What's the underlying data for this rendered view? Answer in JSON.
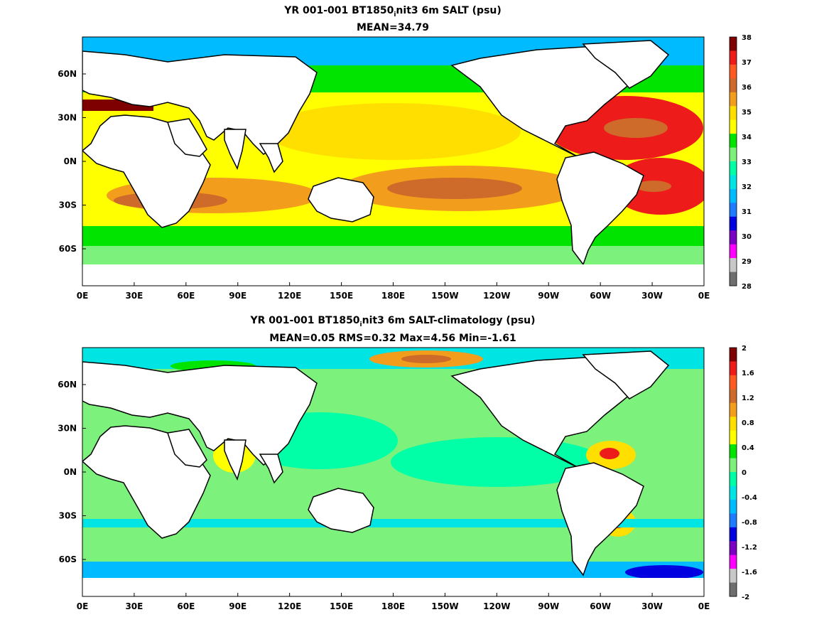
{
  "chart_data": [
    {
      "type": "heatmap",
      "panel": "top",
      "title": "YR 001-001 BT1850",
      "title_sub": "i",
      "title_rest": "nit3 6m SALT (psu)",
      "subtitle": "MEAN=34.79",
      "x_ticks": [
        "0E",
        "30E",
        "60E",
        "90E",
        "120E",
        "150E",
        "180E",
        "150W",
        "120W",
        "90W",
        "60W",
        "30W",
        "0E"
      ],
      "y_ticks": [
        "60N",
        "30N",
        "0N",
        "30S",
        "60S"
      ],
      "colorbar": {
        "labels": [
          "38",
          "37",
          "36",
          "35",
          "34",
          "33",
          "32",
          "31",
          "30",
          "29",
          "28"
        ],
        "colors": [
          "#7f0000",
          "#ee1b1b",
          "#ff5a22",
          "#ce6a2a",
          "#f29d1c",
          "#ffdf00",
          "#ffff00",
          "#00e400",
          "#7cf27c",
          "#00ffa6",
          "#00e4e4",
          "#00bbff",
          "#1f7bff",
          "#0000e0",
          "#7a00c4",
          "#ff00ff",
          "#c8c8c8",
          "#6e6e6e"
        ]
      }
    },
    {
      "type": "heatmap",
      "panel": "bottom",
      "title": "YR 001-001 BT1850",
      "title_sub": "i",
      "title_rest": "nit3 6m SALT-climatology (psu)",
      "subtitle": "MEAN=0.05   RMS=0.32   Max=4.56   Min=-1.61",
      "x_ticks": [
        "0E",
        "30E",
        "60E",
        "90E",
        "120E",
        "150E",
        "180E",
        "150W",
        "120W",
        "90W",
        "60W",
        "30W",
        "0E"
      ],
      "y_ticks": [
        "60N",
        "30N",
        "0N",
        "30S",
        "60S"
      ],
      "colorbar": {
        "labels": [
          "2",
          "1.6",
          "1.2",
          "0.8",
          "0.4",
          "0",
          "-0.4",
          "-0.8",
          "-1.2",
          "-1.6",
          "-2"
        ],
        "colors": [
          "#7f0000",
          "#ee1b1b",
          "#ff5a22",
          "#ce6a2a",
          "#f29d1c",
          "#ffdf00",
          "#ffff00",
          "#00e400",
          "#7cf27c",
          "#00ffa6",
          "#00e4e4",
          "#00bbff",
          "#1f7bff",
          "#0000e0",
          "#7a00c4",
          "#ff00ff",
          "#c8c8c8",
          "#6e6e6e"
        ]
      }
    }
  ]
}
